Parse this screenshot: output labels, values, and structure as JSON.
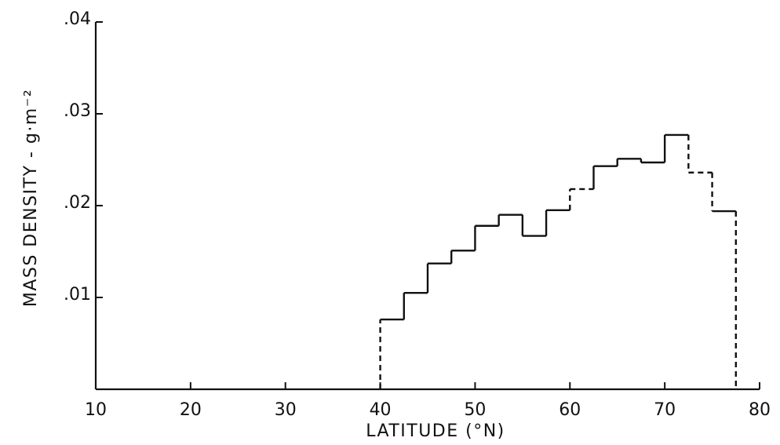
{
  "chart_data": {
    "type": "bar",
    "style": "step-histogram",
    "xlabel": "LATITUDE (°N)",
    "ylabel": "MASS DENSITY - g·m⁻²",
    "xlim": [
      10,
      80
    ],
    "ylim": [
      0,
      0.04
    ],
    "x_ticks": [
      10,
      20,
      30,
      40,
      50,
      60,
      70,
      80
    ],
    "x_tick_labels": [
      "10",
      "20",
      "30",
      "40",
      "50",
      "60",
      "70",
      "80"
    ],
    "y_ticks": [
      0.01,
      0.02,
      0.03,
      0.04
    ],
    "y_tick_labels": [
      ".01",
      ".02",
      ".03",
      ".04"
    ],
    "grid": false,
    "bins": [
      {
        "x0": 40.0,
        "x1": 42.5,
        "value": 0.0076
      },
      {
        "x0": 42.5,
        "x1": 45.0,
        "value": 0.0105
      },
      {
        "x0": 45.0,
        "x1": 47.5,
        "value": 0.0137
      },
      {
        "x0": 47.5,
        "x1": 50.0,
        "value": 0.0151
      },
      {
        "x0": 50.0,
        "x1": 52.5,
        "value": 0.0178
      },
      {
        "x0": 52.5,
        "x1": 55.0,
        "value": 0.019
      },
      {
        "x0": 55.0,
        "x1": 57.5,
        "value": 0.0167
      },
      {
        "x0": 57.5,
        "x1": 60.0,
        "value": 0.0195
      },
      {
        "x0": 60.0,
        "x1": 62.5,
        "value": 0.0218
      },
      {
        "x0": 62.5,
        "x1": 65.0,
        "value": 0.0243
      },
      {
        "x0": 65.0,
        "x1": 67.5,
        "value": 0.0251
      },
      {
        "x0": 67.5,
        "x1": 70.0,
        "value": 0.0247
      },
      {
        "x0": 70.0,
        "x1": 72.5,
        "value": 0.0277
      },
      {
        "x0": 72.5,
        "x1": 75.0,
        "value": 0.0236
      },
      {
        "x0": 75.0,
        "x1": 77.5,
        "value": 0.0194
      }
    ],
    "dashed_segments": [
      {
        "from": [
          40.0,
          0
        ],
        "to": [
          40.0,
          0.0076
        ]
      },
      {
        "from": [
          60.0,
          0.0195
        ],
        "to": [
          60.0,
          0.0218
        ]
      },
      {
        "from": [
          60.0,
          0.0218
        ],
        "to": [
          62.5,
          0.0218
        ]
      },
      {
        "from": [
          72.5,
          0.0277
        ],
        "to": [
          72.5,
          0.0236
        ]
      },
      {
        "from": [
          72.5,
          0.0236
        ],
        "to": [
          75.0,
          0.0236
        ]
      },
      {
        "from": [
          75.0,
          0.0236
        ],
        "to": [
          75.0,
          0.0194
        ]
      },
      {
        "from": [
          77.5,
          0.0194
        ],
        "to": [
          77.5,
          0
        ]
      }
    ]
  }
}
